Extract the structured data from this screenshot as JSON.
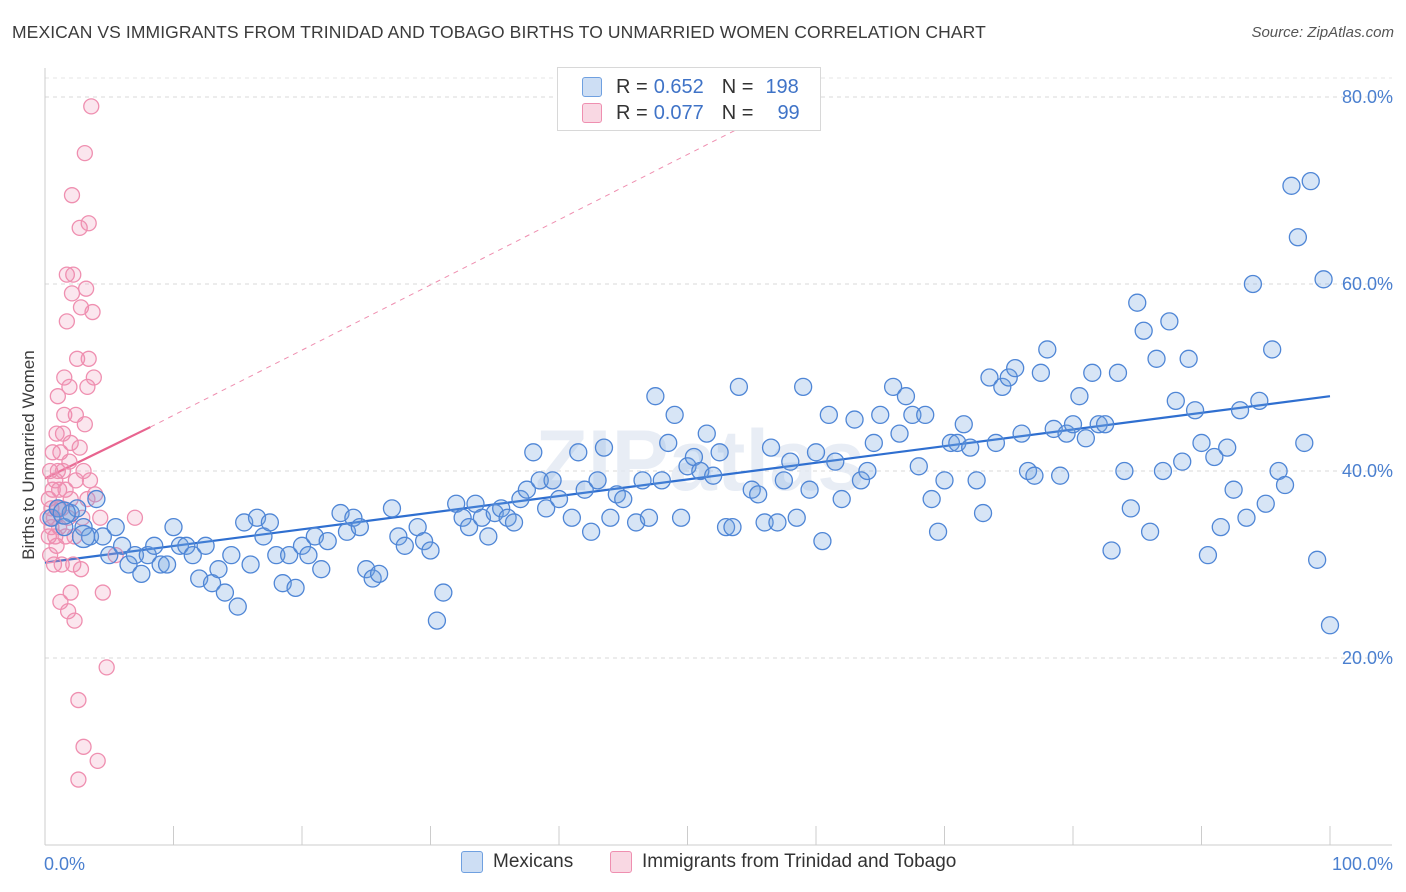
{
  "header": {
    "title": "MEXICAN VS IMMIGRANTS FROM TRINIDAD AND TOBAGO BIRTHS TO UNMARRIED WOMEN CORRELATION CHART",
    "source": "Source: ZipAtlas.com"
  },
  "watermark": "ZIPatlas",
  "legend": {
    "rows": [
      {
        "r_label": "R =",
        "r_value": "0.652",
        "n_label": "N =",
        "n_value": "198",
        "color": "#6fa0e0"
      },
      {
        "r_label": "R =",
        "r_value": "0.077",
        "n_label": "N =",
        "n_value": "99",
        "color": "#ef8fb0"
      }
    ]
  },
  "bottom_legend": [
    {
      "label": "Mexicans",
      "color": "#6fa0e0"
    },
    {
      "label": "Immigrants from Trinidad and Tobago",
      "color": "#ef8fb0"
    }
  ],
  "chart_data": {
    "type": "scatter",
    "title": "MEXICAN VS IMMIGRANTS FROM TRINIDAD AND TOBAGO BIRTHS TO UNMARRIED WOMEN CORRELATION CHART",
    "xlabel": "",
    "ylabel": "Births to Unmarried Women",
    "xlim": [
      0,
      100
    ],
    "ylim": [
      0,
      85
    ],
    "x_ticks": [
      "0.0%",
      "100.0%"
    ],
    "y_ticks": [
      {
        "value": 20,
        "label": "20.0%"
      },
      {
        "value": 40,
        "label": "40.0%"
      },
      {
        "value": 60,
        "label": "60.0%"
      },
      {
        "value": 80,
        "label": "80.0%"
      }
    ],
    "grid": "horizontal dashed",
    "legend_placement": "top-center",
    "series": [
      {
        "name": "Mexicans",
        "color": "#6fa0e0",
        "trend": {
          "x": [
            0,
            100
          ],
          "y": [
            30.2,
            48.0
          ],
          "style": "solid"
        },
        "points": [
          [
            0.5,
            35
          ],
          [
            1,
            36
          ],
          [
            1.5,
            34
          ],
          [
            2,
            35.5
          ],
          [
            2.5,
            36
          ],
          [
            3,
            34
          ],
          [
            3.5,
            33
          ],
          [
            4,
            37
          ],
          [
            4.5,
            33
          ],
          [
            5,
            31
          ],
          [
            5.5,
            34
          ],
          [
            6,
            32
          ],
          [
            6.5,
            30
          ],
          [
            7,
            31
          ],
          [
            7.5,
            29
          ],
          [
            8,
            31
          ],
          [
            8.5,
            32
          ],
          [
            9,
            30
          ],
          [
            9.5,
            30
          ],
          [
            10,
            34
          ],
          [
            10.5,
            32
          ],
          [
            11,
            32
          ],
          [
            11.5,
            31
          ],
          [
            12,
            28.5
          ],
          [
            12.5,
            32
          ],
          [
            13,
            28
          ],
          [
            13.5,
            29.5
          ],
          [
            14,
            27
          ],
          [
            14.5,
            31
          ],
          [
            15,
            25.5
          ],
          [
            15.5,
            34.5
          ],
          [
            16,
            30
          ],
          [
            16.5,
            35
          ],
          [
            17,
            33
          ],
          [
            17.5,
            34.5
          ],
          [
            18,
            31
          ],
          [
            18.5,
            28
          ],
          [
            19,
            31
          ],
          [
            19.5,
            27.5
          ],
          [
            20,
            32
          ],
          [
            20.5,
            31
          ],
          [
            21,
            33
          ],
          [
            21.5,
            29.5
          ],
          [
            22,
            32.5
          ],
          [
            23,
            35.5
          ],
          [
            23.5,
            33.5
          ],
          [
            24,
            35
          ],
          [
            24.5,
            34
          ],
          [
            25,
            29.5
          ],
          [
            25.5,
            28.5
          ],
          [
            26,
            29
          ],
          [
            27,
            36
          ],
          [
            27.5,
            33
          ],
          [
            28,
            32
          ],
          [
            29,
            34
          ],
          [
            29.5,
            32.5
          ],
          [
            30,
            31.5
          ],
          [
            30.5,
            24
          ],
          [
            31,
            27
          ],
          [
            32,
            36.5
          ],
          [
            32.5,
            35
          ],
          [
            33,
            34
          ],
          [
            33.5,
            36.5
          ],
          [
            34,
            35
          ],
          [
            34.5,
            33
          ],
          [
            35,
            35.5
          ],
          [
            35.5,
            36
          ],
          [
            36,
            35
          ],
          [
            36.5,
            34.5
          ],
          [
            37,
            37
          ],
          [
            37.5,
            38
          ],
          [
            38,
            42
          ],
          [
            38.5,
            39
          ],
          [
            39,
            36
          ],
          [
            39.5,
            39
          ],
          [
            40,
            37
          ],
          [
            41,
            35
          ],
          [
            41.5,
            42
          ],
          [
            42,
            38
          ],
          [
            42.5,
            33.5
          ],
          [
            43,
            39
          ],
          [
            43.5,
            42.5
          ],
          [
            44,
            35
          ],
          [
            44.5,
            37.5
          ],
          [
            45,
            37
          ],
          [
            46,
            34.5
          ],
          [
            46.5,
            39
          ],
          [
            47,
            35
          ],
          [
            47.5,
            48
          ],
          [
            48,
            39
          ],
          [
            48.5,
            43
          ],
          [
            49,
            46
          ],
          [
            49.5,
            35
          ],
          [
            50,
            40.5
          ],
          [
            50.5,
            41.5
          ],
          [
            51,
            40
          ],
          [
            51.5,
            44
          ],
          [
            52,
            39.5
          ],
          [
            52.5,
            42
          ],
          [
            53,
            34
          ],
          [
            53.5,
            34
          ],
          [
            54,
            49
          ],
          [
            55,
            38
          ],
          [
            55.5,
            37.5
          ],
          [
            56,
            34.5
          ],
          [
            56.5,
            42.5
          ],
          [
            57,
            34.5
          ],
          [
            57.5,
            39
          ],
          [
            58,
            41
          ],
          [
            58.5,
            35
          ],
          [
            59,
            49
          ],
          [
            59.5,
            38
          ],
          [
            60,
            42
          ],
          [
            60.5,
            32.5
          ],
          [
            61,
            46
          ],
          [
            61.5,
            41
          ],
          [
            62,
            37
          ],
          [
            63,
            45.5
          ],
          [
            63.5,
            39
          ],
          [
            64,
            40
          ],
          [
            64.5,
            43
          ],
          [
            65,
            46
          ],
          [
            66,
            49
          ],
          [
            66.5,
            44
          ],
          [
            67,
            48
          ],
          [
            67.5,
            46
          ],
          [
            68,
            40.5
          ],
          [
            68.5,
            46
          ],
          [
            69,
            37
          ],
          [
            69.5,
            33.5
          ],
          [
            70,
            39
          ],
          [
            70.5,
            43
          ],
          [
            71,
            43
          ],
          [
            71.5,
            45
          ],
          [
            72,
            42.5
          ],
          [
            72.5,
            39
          ],
          [
            73,
            35.5
          ],
          [
            73.5,
            50
          ],
          [
            74,
            43
          ],
          [
            74.5,
            49
          ],
          [
            75,
            50
          ],
          [
            75.5,
            51
          ],
          [
            76,
            44
          ],
          [
            76.5,
            40
          ],
          [
            77,
            39.5
          ],
          [
            77.5,
            50.5
          ],
          [
            78,
            53
          ],
          [
            78.5,
            44.5
          ],
          [
            79,
            39.5
          ],
          [
            79.5,
            44
          ],
          [
            80,
            45
          ],
          [
            80.5,
            48
          ],
          [
            81,
            43.5
          ],
          [
            81.5,
            50.5
          ],
          [
            82,
            45
          ],
          [
            82.5,
            45
          ],
          [
            83,
            31.5
          ],
          [
            83.5,
            50.5
          ],
          [
            84,
            40
          ],
          [
            84.5,
            36
          ],
          [
            85,
            58
          ],
          [
            85.5,
            55
          ],
          [
            86,
            33.5
          ],
          [
            86.5,
            52
          ],
          [
            87,
            40
          ],
          [
            87.5,
            56
          ],
          [
            88,
            47.5
          ],
          [
            88.5,
            41
          ],
          [
            89,
            52
          ],
          [
            89.5,
            46.5
          ],
          [
            90,
            43
          ],
          [
            90.5,
            31
          ],
          [
            91,
            41.5
          ],
          [
            91.5,
            34
          ],
          [
            92,
            42.5
          ],
          [
            92.5,
            38
          ],
          [
            93,
            46.5
          ],
          [
            93.5,
            35
          ],
          [
            94,
            60
          ],
          [
            94.5,
            47.5
          ],
          [
            95,
            36.5
          ],
          [
            95.5,
            53
          ],
          [
            96,
            40
          ],
          [
            96.5,
            38.5
          ],
          [
            97,
            70.5
          ],
          [
            97.5,
            65
          ],
          [
            98,
            43
          ],
          [
            98.5,
            71
          ],
          [
            99,
            30.5
          ],
          [
            99.5,
            60.5
          ],
          [
            100,
            23.5
          ]
        ]
      },
      {
        "name": "Immigrants from Trinidad and Tobago",
        "color": "#ef8fb0",
        "trend": {
          "x": [
            0,
            8.2
          ],
          "y": [
            39.2,
            44.7
          ],
          "style": "solid",
          "extended_dashed_to": [
            53.8,
            76.5
          ]
        },
        "points": [
          [
            0.2,
            35
          ],
          [
            0.3,
            33
          ],
          [
            0.3,
            37
          ],
          [
            0.4,
            31
          ],
          [
            0.4,
            40
          ],
          [
            0.5,
            34
          ],
          [
            0.5,
            36
          ],
          [
            0.6,
            38
          ],
          [
            0.6,
            42
          ],
          [
            0.7,
            30
          ],
          [
            0.7,
            35
          ],
          [
            0.8,
            33
          ],
          [
            0.8,
            39
          ],
          [
            0.9,
            32
          ],
          [
            0.9,
            44
          ],
          [
            1,
            36
          ],
          [
            1,
            40
          ],
          [
            1,
            48
          ],
          [
            1.1,
            34
          ],
          [
            1.1,
            38
          ],
          [
            1.2,
            42
          ],
          [
            1.2,
            26
          ],
          [
            1.3,
            30
          ],
          [
            1.3,
            36
          ],
          [
            1.4,
            40
          ],
          [
            1.4,
            44
          ],
          [
            1.5,
            46
          ],
          [
            1.5,
            50
          ],
          [
            1.6,
            33
          ],
          [
            1.6,
            38
          ],
          [
            1.7,
            61
          ],
          [
            1.7,
            56
          ],
          [
            1.8,
            25
          ],
          [
            1.8,
            35
          ],
          [
            1.9,
            41
          ],
          [
            1.9,
            49
          ],
          [
            2,
            27
          ],
          [
            2,
            37
          ],
          [
            2,
            43
          ],
          [
            2.1,
            69.5
          ],
          [
            2.1,
            59
          ],
          [
            2.2,
            61
          ],
          [
            2.2,
            30
          ],
          [
            2.3,
            24
          ],
          [
            2.3,
            33
          ],
          [
            2.4,
            39
          ],
          [
            2.4,
            46
          ],
          [
            2.5,
            52
          ],
          [
            2.6,
            7
          ],
          [
            2.6,
            15.5
          ],
          [
            2.7,
            42.5
          ],
          [
            2.7,
            66
          ],
          [
            2.8,
            57.5
          ],
          [
            2.8,
            29.5
          ],
          [
            2.9,
            35
          ],
          [
            3,
            10.5
          ],
          [
            3,
            40
          ],
          [
            3.1,
            74
          ],
          [
            3.1,
            45
          ],
          [
            3.2,
            59.5
          ],
          [
            3.3,
            49
          ],
          [
            3.3,
            37
          ],
          [
            3.4,
            66.5
          ],
          [
            3.4,
            52
          ],
          [
            3.5,
            39
          ],
          [
            3.6,
            79
          ],
          [
            3.7,
            57
          ],
          [
            3.8,
            50
          ],
          [
            3.9,
            37.5
          ],
          [
            4.1,
            9
          ],
          [
            4.3,
            35
          ],
          [
            4.5,
            27
          ],
          [
            4.8,
            19
          ],
          [
            5.5,
            31
          ],
          [
            7,
            35
          ]
        ]
      }
    ]
  }
}
